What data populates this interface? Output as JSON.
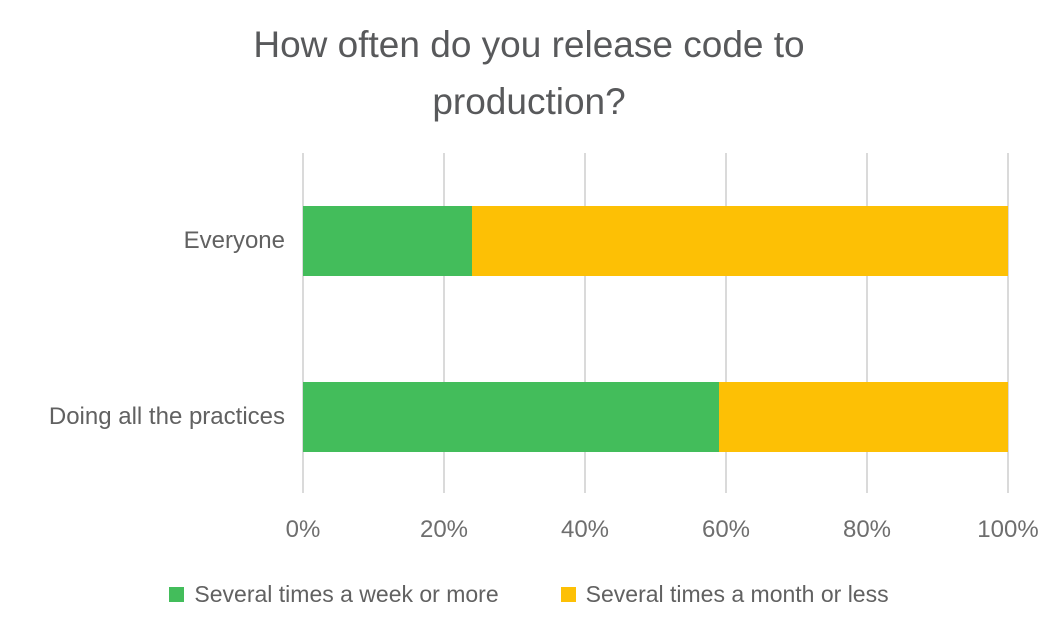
{
  "page": {
    "background": "#ffffff"
  },
  "chart_data": {
    "type": "bar",
    "orientation": "horizontal",
    "stacked": true,
    "title": "How often do you release code to production?",
    "title_lines": [
      "How often do you release code to",
      "production?"
    ],
    "categories": [
      "Everyone",
      "Doing all the practices"
    ],
    "series": [
      {
        "name": "Several times a week or more",
        "color": "#43BD5B",
        "values": [
          24,
          59
        ]
      },
      {
        "name": "Several times a month or less",
        "color": "#FDC005",
        "values": [
          76,
          41
        ]
      }
    ],
    "xlabel": "",
    "ylabel": "",
    "xlim": [
      0,
      100
    ],
    "x_tick_values": [
      0,
      20,
      40,
      60,
      80,
      100
    ],
    "x_tick_labels": [
      "0%",
      "20%",
      "40%",
      "60%",
      "80%",
      "100%"
    ],
    "grid": "vertical",
    "legend_position": "bottom"
  },
  "colors": {
    "title_text": "#58595B",
    "category_text": "#616161",
    "axis_text": "#6E6E6E",
    "legend_text": "#616161",
    "gridline": "#DADADA",
    "background": "#ffffff"
  }
}
